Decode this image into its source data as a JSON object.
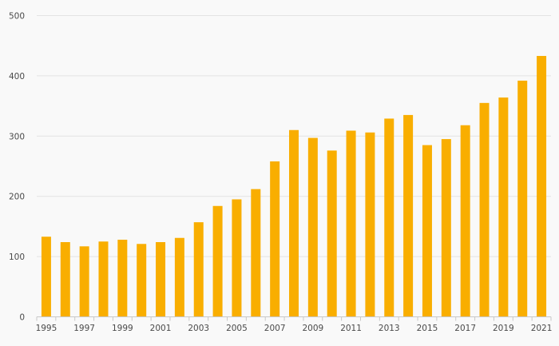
{
  "chart_data": {
    "type": "bar",
    "categories": [
      "1995",
      "1996",
      "1997",
      "1998",
      "1999",
      "2000",
      "2001",
      "2002",
      "2003",
      "2004",
      "2005",
      "2006",
      "2007",
      "2008",
      "2009",
      "2010",
      "2011",
      "2012",
      "2013",
      "2014",
      "2015",
      "2016",
      "2017",
      "2018",
      "2019",
      "2020",
      "2021"
    ],
    "values": [
      133,
      124,
      117,
      125,
      128,
      121,
      124,
      131,
      157,
      184,
      195,
      212,
      258,
      310,
      297,
      276,
      309,
      306,
      329,
      335,
      285,
      295,
      318,
      355,
      364,
      392,
      433
    ],
    "x_tick_labels": [
      "1995",
      "1997",
      "1999",
      "2001",
      "2003",
      "2005",
      "2007",
      "2009",
      "2011",
      "2013",
      "2015",
      "2017",
      "2019",
      "2021"
    ],
    "y_ticks": [
      "0",
      "100",
      "200",
      "300",
      "400",
      "500"
    ],
    "ylim": [
      0,
      500
    ],
    "grid": true,
    "colors": {
      "bar": "#f9ae00",
      "grid": "#e3e3e3",
      "axis": "#c8c8c8",
      "background": "#f9f9f9"
    },
    "title": "",
    "xlabel": "",
    "ylabel": ""
  }
}
